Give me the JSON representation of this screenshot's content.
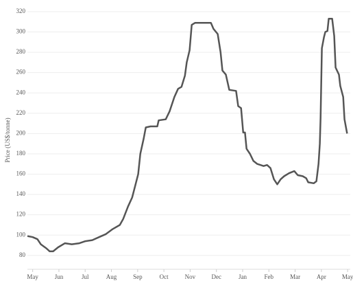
{
  "chart_data": {
    "type": "line",
    "ylabel": "Price (US$/tonne)",
    "x": [
      -0.2,
      0,
      0.18,
      0.31,
      0.52,
      0.65,
      0.78,
      0.97,
      1.23,
      1.49,
      1.78,
      2.01,
      2.27,
      2.53,
      2.79,
      3.05,
      3.32,
      3.45,
      3.63,
      3.79,
      3.92,
      4.02,
      4.1,
      4.23,
      4.31,
      4.49,
      4.75,
      4.8,
      5.07,
      5.22,
      5.4,
      5.54,
      5.67,
      5.8,
      5.87,
      5.98,
      6.06,
      6.19,
      6.58,
      6.79,
      6.89,
      7.05,
      7.16,
      7.23,
      7.36,
      7.49,
      7.75,
      7.83,
      7.94,
      8.02,
      8.09,
      8.15,
      8.28,
      8.41,
      8.56,
      8.8,
      8.93,
      9.06,
      9.19,
      9.32,
      9.45,
      9.58,
      9.77,
      9.97,
      10.1,
      10.29,
      10.42,
      10.5,
      10.71,
      10.81,
      10.89,
      10.94,
      10.97,
      11.02,
      11.1,
      11.15,
      11.23,
      11.28,
      11.41,
      11.49,
      11.54,
      11.67,
      11.72,
      11.83,
      11.88,
      11.98
    ],
    "series": [
      {
        "color": "#555555",
        "values": [
          99,
          98,
          96,
          91,
          87,
          84,
          84,
          88,
          92,
          91,
          92,
          94,
          95,
          98,
          101,
          106,
          110,
          116,
          128,
          137,
          150,
          160,
          180,
          195,
          206,
          207,
          207,
          213,
          214,
          222,
          236,
          244,
          246,
          257,
          270,
          282,
          307,
          309,
          309,
          309,
          303,
          298,
          280,
          262,
          258,
          243,
          242,
          227,
          225,
          201,
          201,
          185,
          180,
          173,
          170,
          168,
          169,
          166,
          155,
          150,
          155,
          158,
          161,
          163,
          159,
          158,
          156,
          152,
          151,
          153,
          170,
          190,
          215,
          284,
          295,
          300,
          301,
          313,
          313,
          296,
          265,
          258,
          247,
          236,
          214,
          200
        ]
      }
    ],
    "xlim": [
      -0.2,
      12.1
    ],
    "xticks": [
      {
        "value": 0,
        "label": "May"
      },
      {
        "value": 1,
        "label": "Jun"
      },
      {
        "value": 2,
        "label": "Jul"
      },
      {
        "value": 3,
        "label": "Aug"
      },
      {
        "value": 4,
        "label": "Sep"
      },
      {
        "value": 5,
        "label": "Oct"
      },
      {
        "value": 6,
        "label": "Nov"
      },
      {
        "value": 7,
        "label": "Dec"
      },
      {
        "value": 8,
        "label": "Jan"
      },
      {
        "value": 9,
        "label": "Feb"
      },
      {
        "value": 10,
        "label": "Mar"
      },
      {
        "value": 11,
        "label": "Apr"
      },
      {
        "value": 12,
        "label": "May"
      }
    ],
    "ylim": [
      65,
      322
    ],
    "yticks": [
      80,
      100,
      120,
      140,
      160,
      180,
      200,
      220,
      240,
      260,
      280,
      300,
      320
    ],
    "grid": true
  }
}
